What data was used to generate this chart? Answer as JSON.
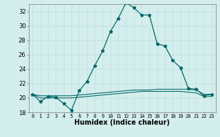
{
  "xlabel": "Humidex (Indice chaleur)",
  "x_values": [
    0,
    1,
    2,
    3,
    4,
    5,
    6,
    7,
    8,
    9,
    10,
    11,
    12,
    13,
    14,
    15,
    16,
    17,
    18,
    19,
    20,
    21,
    22,
    23
  ],
  "line1_y": [
    20.5,
    19.5,
    20.2,
    20.1,
    19.2,
    18.3,
    21.0,
    22.3,
    24.5,
    26.5,
    29.2,
    31.0,
    33.2,
    32.5,
    31.5,
    31.5,
    27.5,
    27.2,
    25.2,
    24.2,
    21.3,
    21.2,
    20.3,
    20.5
  ],
  "line2_y": [
    20.5,
    20.3,
    20.3,
    20.3,
    20.3,
    20.3,
    20.4,
    20.5,
    20.6,
    20.7,
    20.8,
    20.9,
    21.0,
    21.1,
    21.1,
    21.1,
    21.2,
    21.2,
    21.2,
    21.2,
    21.2,
    21.1,
    20.5,
    20.5
  ],
  "line3_y": [
    20.5,
    20.0,
    20.0,
    20.0,
    20.0,
    20.0,
    20.1,
    20.2,
    20.3,
    20.4,
    20.5,
    20.6,
    20.7,
    20.8,
    20.9,
    20.9,
    20.9,
    20.9,
    20.9,
    20.9,
    20.8,
    20.7,
    20.2,
    20.2
  ],
  "ylim": [
    18,
    33
  ],
  "xlim": [
    -0.5,
    23.5
  ],
  "line_color": "#006666",
  "bg_color": "#d4eeed",
  "grid_major_color": "#c0dede",
  "grid_minor_color": "#c8e8e4",
  "yticks": [
    18,
    20,
    22,
    24,
    26,
    28,
    30,
    32
  ]
}
